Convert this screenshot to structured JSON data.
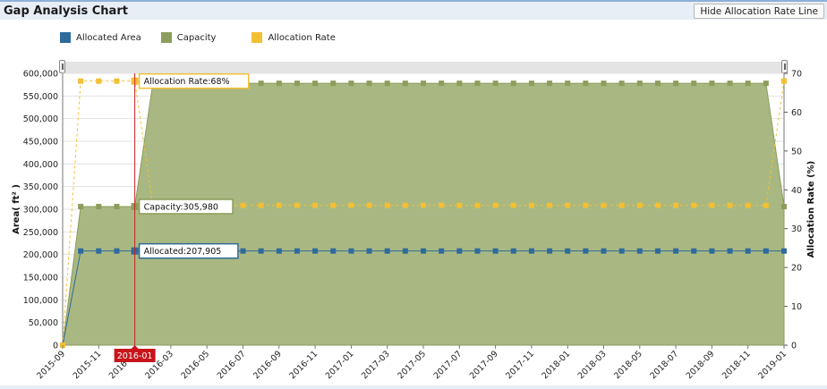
{
  "header": {
    "title": "Gap Analysis Chart",
    "toggle_label": "Hide Allocation Rate Line"
  },
  "legend": [
    {
      "label": "Allocated Area",
      "color": "#2f6a9c"
    },
    {
      "label": "Capacity",
      "color": "#8c9d5c"
    },
    {
      "label": "Allocation Rate",
      "color": "#f3bf33"
    }
  ],
  "colors": {
    "allocated": "#2f6a9c",
    "capacity_fill": "#a9b882",
    "capacity_line": "#8c9d5c",
    "rate": "#f3bf33",
    "cursor": "#cc2222"
  },
  "chart_data": {
    "type": "area",
    "title": "Gap Analysis Chart",
    "ylabel": "Area( ft² )",
    "y2label": "Allocation Rate (%)",
    "ylim": [
      0,
      600000
    ],
    "y2lim": [
      0,
      70
    ],
    "yticks": [
      "0",
      "50,000",
      "100,000",
      "150,000",
      "200,000",
      "250,000",
      "300,000",
      "350,000",
      "400,000",
      "450,000",
      "500,000",
      "550,000",
      "600,000"
    ],
    "y2ticks": [
      "0",
      "10",
      "20",
      "30",
      "40",
      "50",
      "60",
      "70"
    ],
    "xticks": [
      "2015-09",
      "2015-11",
      "2016-01",
      "2016-03",
      "2016-05",
      "2016-07",
      "2016-09",
      "2016-11",
      "2017-01",
      "2017-03",
      "2017-05",
      "2017-07",
      "2017-09",
      "2017-11",
      "2018-01",
      "2018-03",
      "2018-05",
      "2018-07",
      "2018-09",
      "2018-11",
      "2019-01"
    ],
    "x": [
      "2015-09",
      "2015-10",
      "2015-11",
      "2015-12",
      "2016-01",
      "2016-02",
      "2016-03",
      "2016-04",
      "2016-05",
      "2016-06",
      "2016-07",
      "2016-08",
      "2016-09",
      "2016-10",
      "2016-11",
      "2016-12",
      "2017-01",
      "2017-02",
      "2017-03",
      "2017-04",
      "2017-05",
      "2017-06",
      "2017-07",
      "2017-08",
      "2017-09",
      "2017-10",
      "2017-11",
      "2017-12",
      "2018-01",
      "2018-02",
      "2018-03",
      "2018-04",
      "2018-05",
      "2018-06",
      "2018-07",
      "2018-08",
      "2018-09",
      "2018-10",
      "2018-11",
      "2018-12",
      "2019-01"
    ],
    "series": [
      {
        "name": "Capacity",
        "axis": "left",
        "values": [
          0,
          305980,
          305980,
          305980,
          305980,
          578000,
          578000,
          578000,
          578000,
          578000,
          578000,
          578000,
          578000,
          578000,
          578000,
          578000,
          578000,
          578000,
          578000,
          578000,
          578000,
          578000,
          578000,
          578000,
          578000,
          578000,
          578000,
          578000,
          578000,
          578000,
          578000,
          578000,
          578000,
          578000,
          578000,
          578000,
          578000,
          578000,
          578000,
          578000,
          305980
        ]
      },
      {
        "name": "Allocated Area",
        "axis": "left",
        "values": [
          0,
          207905,
          207905,
          207905,
          207905,
          207905,
          207905,
          207905,
          207905,
          207905,
          207905,
          207905,
          207905,
          207905,
          207905,
          207905,
          207905,
          207905,
          207905,
          207905,
          207905,
          207905,
          207905,
          207905,
          207905,
          207905,
          207905,
          207905,
          207905,
          207905,
          207905,
          207905,
          207905,
          207905,
          207905,
          207905,
          207905,
          207905,
          207905,
          207905,
          207905
        ]
      },
      {
        "name": "Allocation Rate",
        "axis": "right",
        "values": [
          0,
          68,
          68,
          68,
          68,
          36,
          36,
          36,
          36,
          36,
          36,
          36,
          36,
          36,
          36,
          36,
          36,
          36,
          36,
          36,
          36,
          36,
          36,
          36,
          36,
          36,
          36,
          36,
          36,
          36,
          36,
          36,
          36,
          36,
          36,
          36,
          36,
          36,
          36,
          36,
          68
        ]
      }
    ],
    "cursor": {
      "x_label": "2016-01",
      "index": 4,
      "tooltips": [
        {
          "text": "Allocation Rate:68%",
          "series": "Allocation Rate"
        },
        {
          "text": "Capacity:305,980",
          "series": "Capacity"
        },
        {
          "text": "Allocated:207,905",
          "series": "Allocated Area"
        }
      ]
    }
  }
}
